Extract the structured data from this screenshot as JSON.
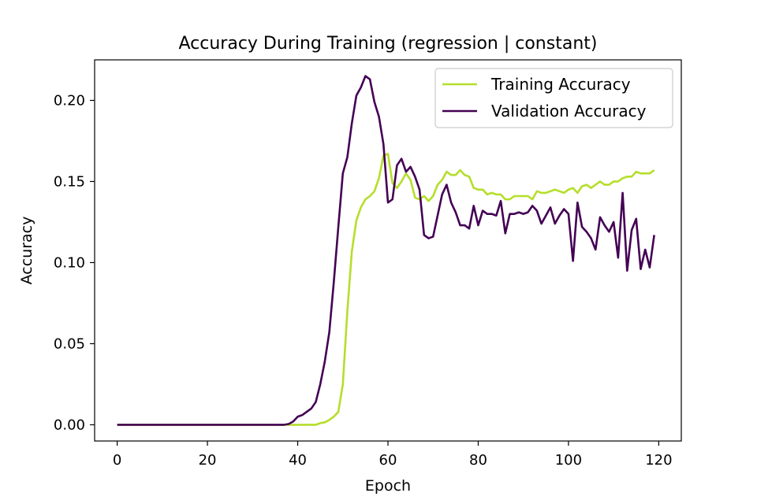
{
  "chart_data": {
    "type": "line",
    "title": "Accuracy During Training (regression | constant)",
    "xlabel": "Epoch",
    "ylabel": "Accuracy",
    "xlim": [
      -5,
      125
    ],
    "ylim": [
      -0.01,
      0.225
    ],
    "xticks": [
      0,
      20,
      40,
      60,
      80,
      100,
      120
    ],
    "yticks": [
      0.0,
      0.05,
      0.1,
      0.15,
      0.2
    ],
    "xtick_labels": [
      "0",
      "20",
      "40",
      "60",
      "80",
      "100",
      "120"
    ],
    "ytick_labels": [
      "0.00",
      "0.05",
      "0.10",
      "0.15",
      "0.20"
    ],
    "grid": false,
    "legend_position": "upper right",
    "x": [
      0,
      1,
      2,
      3,
      4,
      5,
      6,
      7,
      8,
      9,
      10,
      11,
      12,
      13,
      14,
      15,
      16,
      17,
      18,
      19,
      20,
      21,
      22,
      23,
      24,
      25,
      26,
      27,
      28,
      29,
      30,
      31,
      32,
      33,
      34,
      35,
      36,
      37,
      38,
      39,
      40,
      41,
      42,
      43,
      44,
      45,
      46,
      47,
      48,
      49,
      50,
      51,
      52,
      53,
      54,
      55,
      56,
      57,
      58,
      59,
      60,
      61,
      62,
      63,
      64,
      65,
      66,
      67,
      68,
      69,
      70,
      71,
      72,
      73,
      74,
      75,
      76,
      77,
      78,
      79,
      80,
      81,
      82,
      83,
      84,
      85,
      86,
      87,
      88,
      89,
      90,
      91,
      92,
      93,
      94,
      95,
      96,
      97,
      98,
      99,
      100,
      101,
      102,
      103,
      104,
      105,
      106,
      107,
      108,
      109,
      110,
      111,
      112,
      113,
      114,
      115,
      116,
      117,
      118,
      119
    ],
    "series": [
      {
        "name": "Training Accuracy",
        "color": "#b5de2b",
        "values": [
          0,
          0,
          0,
          0,
          0,
          0,
          0,
          0,
          0,
          0,
          0,
          0,
          0,
          0,
          0,
          0,
          0,
          0,
          0,
          0,
          0,
          0,
          0,
          0,
          0,
          0,
          0,
          0,
          0,
          0,
          0,
          0,
          0,
          0,
          0,
          0,
          0,
          0,
          0,
          0,
          0,
          0,
          0,
          0,
          0,
          0.001,
          0.0015,
          0.003,
          0.005,
          0.008,
          0.025,
          0.07,
          0.107,
          0.126,
          0.134,
          0.139,
          0.141,
          0.144,
          0.152,
          0.166,
          0.167,
          0.149,
          0.146,
          0.15,
          0.155,
          0.151,
          0.14,
          0.139,
          0.141,
          0.138,
          0.141,
          0.148,
          0.151,
          0.156,
          0.154,
          0.154,
          0.157,
          0.154,
          0.153,
          0.146,
          0.145,
          0.145,
          0.142,
          0.143,
          0.142,
          0.142,
          0.139,
          0.139,
          0.141,
          0.141,
          0.141,
          0.141,
          0.139,
          0.144,
          0.143,
          0.143,
          0.144,
          0.145,
          0.144,
          0.143,
          0.145,
          0.146,
          0.143,
          0.147,
          0.148,
          0.146,
          0.148,
          0.15,
          0.148,
          0.148,
          0.15,
          0.15,
          0.152,
          0.153,
          0.153,
          0.156,
          0.155,
          0.155,
          0.155,
          0.157
        ]
      },
      {
        "name": "Validation Accuracy",
        "color": "#440154",
        "values": [
          0,
          0,
          0,
          0,
          0,
          0,
          0,
          0,
          0,
          0,
          0,
          0,
          0,
          0,
          0,
          0,
          0,
          0,
          0,
          0,
          0,
          0,
          0,
          0,
          0,
          0,
          0,
          0,
          0,
          0,
          0,
          0,
          0,
          0,
          0,
          0,
          0,
          0,
          0.0005,
          0.002,
          0.005,
          0.006,
          0.008,
          0.01,
          0.014,
          0.025,
          0.039,
          0.057,
          0.088,
          0.122,
          0.155,
          0.165,
          0.186,
          0.203,
          0.208,
          0.215,
          0.213,
          0.199,
          0.19,
          0.173,
          0.137,
          0.139,
          0.16,
          0.164,
          0.156,
          0.159,
          0.153,
          0.145,
          0.117,
          0.115,
          0.116,
          0.129,
          0.142,
          0.148,
          0.137,
          0.131,
          0.123,
          0.123,
          0.121,
          0.135,
          0.123,
          0.132,
          0.13,
          0.13,
          0.129,
          0.138,
          0.118,
          0.13,
          0.13,
          0.131,
          0.13,
          0.131,
          0.135,
          0.132,
          0.124,
          0.129,
          0.134,
          0.124,
          0.129,
          0.133,
          0.13,
          0.101,
          0.137,
          0.122,
          0.119,
          0.115,
          0.108,
          0.128,
          0.123,
          0.119,
          0.125,
          0.103,
          0.143,
          0.095,
          0.12,
          0.127,
          0.096,
          0.108,
          0.097,
          0.117
        ]
      }
    ]
  }
}
